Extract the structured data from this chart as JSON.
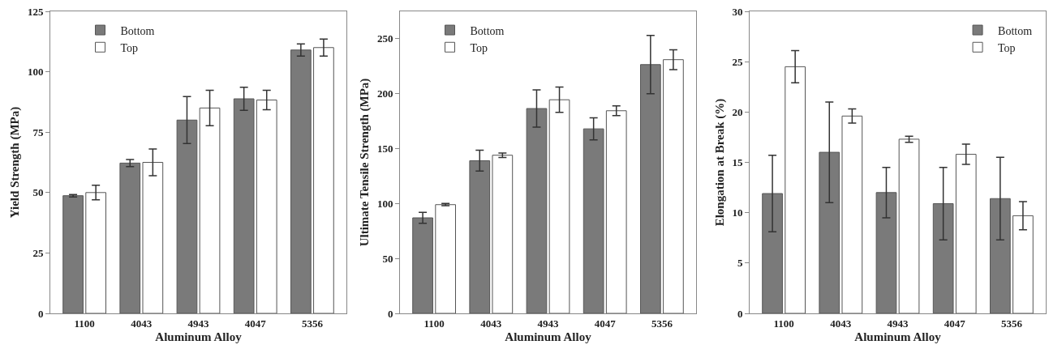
{
  "chart_data": [
    {
      "type": "bar",
      "xlabel": "Aluminum Alloy",
      "ylabel": "Yield Strength (MPa)",
      "categories": [
        "1100",
        "4043",
        "4943",
        "4047",
        "5356"
      ],
      "ylim": [
        0,
        125
      ],
      "yticks": [
        0,
        25,
        50,
        75,
        100,
        125
      ],
      "grid": false,
      "legend": "top left",
      "series": [
        {
          "name": "Bottom",
          "color": "#7a7a7a",
          "values": [
            48.7,
            62.2,
            80,
            88.8,
            109
          ],
          "errors": [
            0.5,
            1.5,
            9.7,
            4.8,
            2.5
          ]
        },
        {
          "name": "Top",
          "color": "#ffffff",
          "values": [
            50,
            62.5,
            85,
            88.3,
            110
          ],
          "errors": [
            3,
            5.5,
            7.3,
            4,
            3.5
          ]
        }
      ]
    },
    {
      "type": "bar",
      "xlabel": "Aluminum Alloy",
      "ylabel": "Ultimate Tensile Strength (MPa)",
      "categories": [
        "1100",
        "4043",
        "4943",
        "4047",
        "5356"
      ],
      "ylim": [
        0,
        275
      ],
      "yticks": [
        0,
        50,
        100,
        150,
        200,
        250
      ],
      "grid": false,
      "legend": "top left",
      "series": [
        {
          "name": "Bottom",
          "color": "#7a7a7a",
          "values": [
            87,
            139,
            186.5,
            168,
            226.5
          ],
          "errors": [
            5,
            9.5,
            17,
            10,
            26.5
          ]
        },
        {
          "name": "Top",
          "color": "#ffffff",
          "values": [
            99,
            144,
            194.5,
            184.5,
            231
          ],
          "errors": [
            1,
            2,
            11.5,
            4.5,
            9
          ]
        }
      ]
    },
    {
      "type": "bar",
      "xlabel": "Aluminum Alloy",
      "ylabel": "Elongation at Break (%)",
      "categories": [
        "1100",
        "4043",
        "4943",
        "4047",
        "5356"
      ],
      "ylim": [
        0,
        30
      ],
      "yticks": [
        0,
        5,
        10,
        15,
        20,
        25,
        30
      ],
      "grid": false,
      "legend": "top right",
      "series": [
        {
          "name": "Bottom",
          "color": "#7a7a7a",
          "values": [
            11.9,
            16,
            12,
            10.9,
            11.4
          ],
          "errors": [
            3.8,
            5,
            2.5,
            3.6,
            4.1
          ]
        },
        {
          "name": "Top",
          "color": "#ffffff",
          "values": [
            24.5,
            19.6,
            17.3,
            15.8,
            9.7
          ],
          "errors": [
            1.6,
            0.7,
            0.3,
            1,
            1.4
          ]
        }
      ]
    }
  ]
}
